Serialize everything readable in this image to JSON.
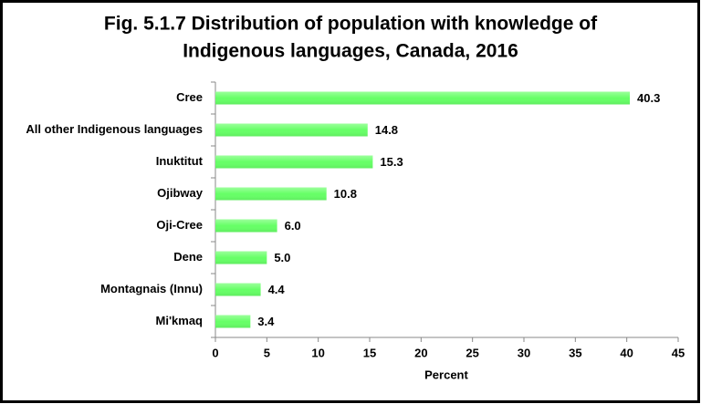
{
  "chart_data": {
    "type": "hbar",
    "title": [
      "Fig. 5.1.7 Distribution of population with knowledge of",
      "Indigenous languages, Canada, 2016"
    ],
    "categories": [
      "Cree",
      "All other Indigenous languages",
      "Inuktitut",
      "Ojibway",
      "Oji-Cree",
      "Dene",
      "Montagnais (Innu)",
      "Mi'kmaq"
    ],
    "values": [
      40.3,
      14.8,
      15.3,
      10.8,
      6.0,
      5.0,
      4.4,
      3.4
    ],
    "value_labels": [
      "40.3",
      "14.8",
      "15.3",
      "10.8",
      "6.0",
      "5.0",
      "4.4",
      "3.4"
    ],
    "color": "#66ff66",
    "xlabel": "Percent",
    "xlim": [
      0,
      45
    ],
    "xticks": [
      0,
      5,
      10,
      15,
      20,
      25,
      30,
      35,
      40,
      45
    ],
    "grid": false
  }
}
